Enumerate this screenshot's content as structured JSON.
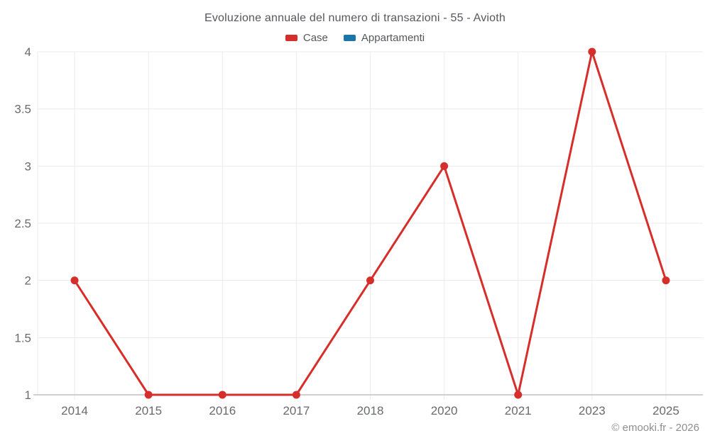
{
  "watermark": "© emooki.fr - 2026",
  "legend": [
    {
      "label": "Case",
      "color": "#d62e2a"
    },
    {
      "label": "Appartamenti",
      "color": "#1b75a9"
    }
  ],
  "colors": {
    "grid": "#ebebeb",
    "axis_line": "#c0c0c0",
    "tick_label": "#696a6e",
    "title_text": "#56575b",
    "watermark_text": "#8e8e90"
  },
  "chart_data": {
    "type": "line",
    "title": "Evoluzione annuale del numero di transazioni - 55 - Avioth",
    "categories": [
      "2014",
      "2015",
      "2016",
      "2017",
      "2018",
      "2020",
      "2021",
      "2023",
      "2025"
    ],
    "series": [
      {
        "name": "Case",
        "color": "#d62e2a",
        "values": [
          2,
          1,
          1,
          1,
          2,
          3,
          1,
          4,
          2
        ]
      },
      {
        "name": "Appartamenti",
        "color": "#1b75a9",
        "values": []
      }
    ],
    "xlabel": "",
    "ylabel": "",
    "ylim": [
      1,
      4
    ],
    "yticks": [
      1,
      1.5,
      2,
      2.5,
      3,
      3.5,
      4
    ],
    "grid": true,
    "legend_position": "top"
  }
}
